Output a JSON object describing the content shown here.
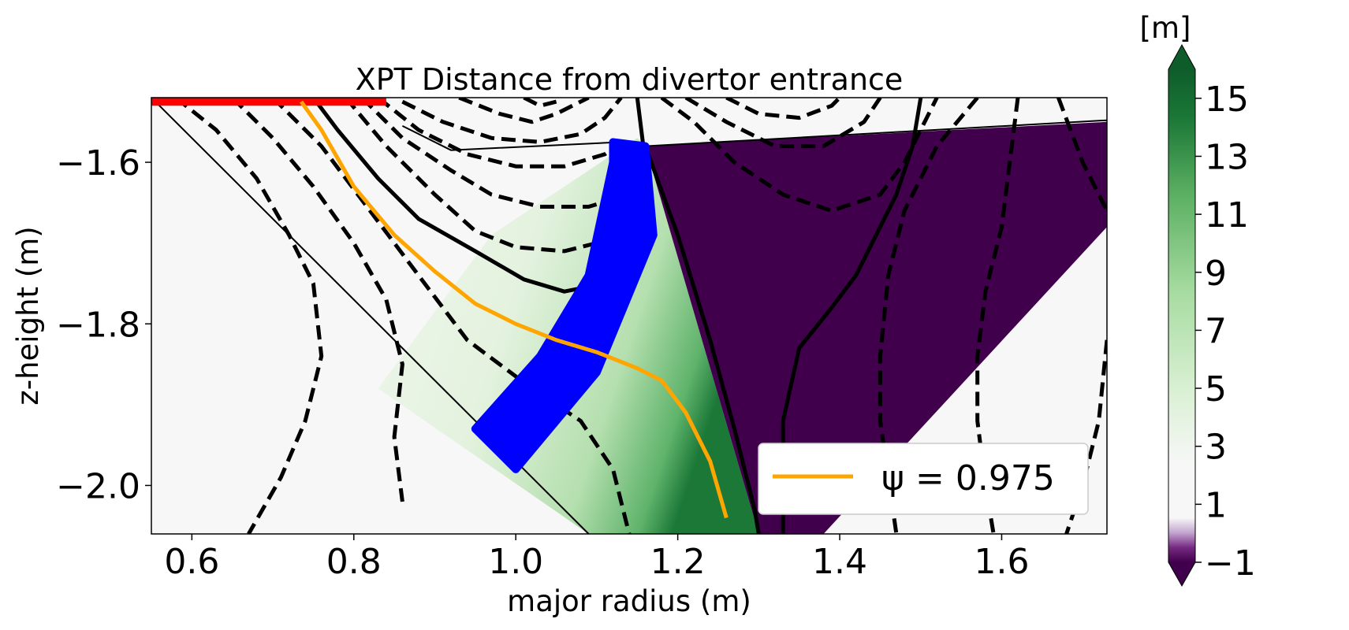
{
  "chart_data": {
    "type": "heatmap",
    "title": "XPT Distance from divertor entrance",
    "xlabel": "major radius (m)",
    "ylabel": "z-height (m)",
    "xlim": [
      0.55,
      1.73
    ],
    "ylim": [
      -2.06,
      -1.52
    ],
    "x_ticks": [
      {
        "value": 0.6,
        "label": "0.6"
      },
      {
        "value": 0.8,
        "label": "0.8"
      },
      {
        "value": 1.0,
        "label": "1.0"
      },
      {
        "value": 1.2,
        "label": "1.2"
      },
      {
        "value": 1.4,
        "label": "1.4"
      },
      {
        "value": 1.6,
        "label": "1.6"
      }
    ],
    "y_ticks": [
      {
        "value": -1.6,
        "label": "−1.6"
      },
      {
        "value": -1.8,
        "label": "−1.8"
      },
      {
        "value": -2.0,
        "label": "−2.0"
      }
    ],
    "colorbar": {
      "label": "[m]",
      "cmap": "PRGn",
      "range": [
        -1,
        16
      ],
      "ticks": [
        {
          "value": 15,
          "label": "15"
        },
        {
          "value": 13,
          "label": "13"
        },
        {
          "value": 11,
          "label": "11"
        },
        {
          "value": 9,
          "label": "9"
        },
        {
          "value": 7,
          "label": "7"
        },
        {
          "value": 5,
          "label": "5"
        },
        {
          "value": 3,
          "label": "3"
        },
        {
          "value": 1,
          "label": "1"
        },
        {
          "value": -1,
          "label": "−1"
        }
      ],
      "extend": "both"
    },
    "legend": {
      "placement": "lower-right",
      "entries": [
        {
          "label": "ψ = 0.975",
          "color": "#ffa500"
        }
      ]
    },
    "colors": {
      "negative_region": "#40004b",
      "background": "#f7f7f7",
      "highlight_band": "#0000ff",
      "top_strip": "#ff0000",
      "orange_line": "#ffa500",
      "contours": "#000000"
    },
    "regions": {
      "purple_region": [
        [
          1.16,
          -1.58
        ],
        [
          1.73,
          -1.55
        ],
        [
          1.73,
          -1.68
        ],
        [
          1.38,
          -2.06
        ],
        [
          1.3,
          -2.06
        ]
      ],
      "green_region": [
        [
          0.97,
          -1.69
        ],
        [
          1.15,
          -1.57
        ],
        [
          1.16,
          -1.58
        ],
        [
          1.3,
          -2.06
        ],
        [
          1.09,
          -2.06
        ],
        [
          0.83,
          -1.88
        ]
      ],
      "blue_band": [
        [
          1.12,
          -1.575
        ],
        [
          1.16,
          -1.58
        ],
        [
          1.17,
          -1.69
        ],
        [
          1.1,
          -1.86
        ],
        [
          1.0,
          -1.98
        ],
        [
          0.95,
          -1.93
        ],
        [
          1.03,
          -1.84
        ],
        [
          1.09,
          -1.74
        ],
        [
          1.12,
          -1.6
        ]
      ],
      "red_strip": [
        [
          0.55,
          -1.52
        ],
        [
          0.84,
          -1.52
        ],
        [
          0.84,
          -1.53
        ],
        [
          0.55,
          -1.53
        ]
      ]
    },
    "boundary_lines": [
      [
        [
          0.55,
          -1.52
        ],
        [
          1.09,
          -2.06
        ]
      ],
      [
        [
          0.86,
          -1.555
        ],
        [
          0.92,
          -1.585
        ],
        [
          1.13,
          -1.575
        ],
        [
          1.16,
          -1.58
        ],
        [
          1.73,
          -1.548
        ]
      ]
    ],
    "orange_line": [
      [
        0.735,
        -1.525
      ],
      [
        0.76,
        -1.56
      ],
      [
        0.8,
        -1.63
      ],
      [
        0.85,
        -1.69
      ],
      [
        0.9,
        -1.735
      ],
      [
        0.95,
        -1.775
      ],
      [
        1.0,
        -1.8
      ],
      [
        1.05,
        -1.82
      ],
      [
        1.1,
        -1.835
      ],
      [
        1.15,
        -1.855
      ],
      [
        1.18,
        -1.87
      ],
      [
        1.21,
        -1.91
      ],
      [
        1.24,
        -1.97
      ],
      [
        1.26,
        -2.04
      ]
    ],
    "solid_contours": [
      [
        [
          0.75,
          -1.52
        ],
        [
          0.78,
          -1.56
        ],
        [
          0.83,
          -1.62
        ],
        [
          0.88,
          -1.67
        ],
        [
          0.95,
          -1.71
        ],
        [
          1.01,
          -1.745
        ],
        [
          1.06,
          -1.76
        ],
        [
          1.11,
          -1.75
        ],
        [
          1.15,
          -1.725
        ],
        [
          1.16,
          -1.69
        ],
        [
          1.16,
          -1.6
        ],
        [
          1.15,
          -1.52
        ]
      ],
      [
        [
          1.16,
          -1.58
        ],
        [
          1.2,
          -1.69
        ],
        [
          1.24,
          -1.82
        ],
        [
          1.27,
          -1.93
        ],
        [
          1.295,
          -2.03
        ],
        [
          1.3,
          -2.06
        ]
      ],
      [
        [
          1.33,
          -2.06
        ],
        [
          1.33,
          -1.92
        ],
        [
          1.35,
          -1.83
        ],
        [
          1.39,
          -1.78
        ],
        [
          1.42,
          -1.74
        ],
        [
          1.44,
          -1.7
        ],
        [
          1.47,
          -1.64
        ],
        [
          1.49,
          -1.58
        ],
        [
          1.5,
          -1.52
        ]
      ]
    ],
    "dashed_contours": [
      [
        [
          0.58,
          -1.52
        ],
        [
          0.63,
          -1.56
        ],
        [
          0.68,
          -1.62
        ],
        [
          0.72,
          -1.69
        ],
        [
          0.75,
          -1.75
        ],
        [
          0.76,
          -1.84
        ],
        [
          0.74,
          -1.92
        ],
        [
          0.71,
          -1.99
        ],
        [
          0.67,
          -2.06
        ]
      ],
      [
        [
          0.65,
          -1.52
        ],
        [
          0.7,
          -1.57
        ],
        [
          0.75,
          -1.63
        ],
        [
          0.8,
          -1.7
        ],
        [
          0.84,
          -1.77
        ],
        [
          0.86,
          -1.85
        ],
        [
          0.85,
          -1.94
        ],
        [
          0.86,
          -2.02
        ]
      ],
      [
        [
          0.7,
          -1.52
        ],
        [
          0.76,
          -1.58
        ],
        [
          0.82,
          -1.66
        ],
        [
          0.88,
          -1.74
        ],
        [
          0.94,
          -1.82
        ],
        [
          1.02,
          -1.88
        ],
        [
          1.08,
          -1.92
        ],
        [
          1.12,
          -1.98
        ],
        [
          1.14,
          -2.06
        ]
      ],
      [
        [
          0.79,
          -1.52
        ],
        [
          0.84,
          -1.58
        ],
        [
          0.9,
          -1.64
        ],
        [
          0.95,
          -1.685
        ],
        [
          1.0,
          -1.705
        ],
        [
          1.06,
          -1.71
        ],
        [
          1.1,
          -1.7
        ],
        [
          1.13,
          -1.68
        ]
      ],
      [
        [
          0.81,
          -1.52
        ],
        [
          0.86,
          -1.57
        ],
        [
          0.92,
          -1.61
        ],
        [
          0.97,
          -1.64
        ],
        [
          1.03,
          -1.655
        ],
        [
          1.09,
          -1.655
        ],
        [
          1.14,
          -1.64
        ]
      ],
      [
        [
          0.83,
          -1.52
        ],
        [
          0.88,
          -1.56
        ],
        [
          0.94,
          -1.59
        ],
        [
          1.0,
          -1.605
        ],
        [
          1.06,
          -1.605
        ],
        [
          1.11,
          -1.59
        ],
        [
          1.14,
          -1.57
        ]
      ],
      [
        [
          0.86,
          -1.525
        ],
        [
          0.91,
          -1.55
        ],
        [
          0.97,
          -1.57
        ],
        [
          1.03,
          -1.575
        ],
        [
          1.08,
          -1.565
        ],
        [
          1.11,
          -1.545
        ],
        [
          1.13,
          -1.52
        ]
      ],
      [
        [
          0.93,
          -1.52
        ],
        [
          0.98,
          -1.54
        ],
        [
          1.02,
          -1.55
        ],
        [
          1.05,
          -1.54
        ],
        [
          1.09,
          -1.52
        ]
      ],
      [
        [
          1.01,
          -1.52
        ],
        [
          1.03,
          -1.53
        ],
        [
          1.05,
          -1.525
        ]
      ],
      [
        [
          1.18,
          -1.52
        ],
        [
          1.22,
          -1.55
        ],
        [
          1.27,
          -1.6
        ],
        [
          1.33,
          -1.64
        ],
        [
          1.39,
          -1.66
        ],
        [
          1.45,
          -1.64
        ],
        [
          1.48,
          -1.6
        ],
        [
          1.51,
          -1.54
        ],
        [
          1.52,
          -1.52
        ]
      ],
      [
        [
          1.21,
          -1.52
        ],
        [
          1.26,
          -1.55
        ],
        [
          1.32,
          -1.58
        ],
        [
          1.38,
          -1.58
        ],
        [
          1.43,
          -1.55
        ],
        [
          1.45,
          -1.52
        ]
      ],
      [
        [
          1.26,
          -1.52
        ],
        [
          1.3,
          -1.54
        ],
        [
          1.35,
          -1.545
        ],
        [
          1.39,
          -1.53
        ],
        [
          1.4,
          -1.52
        ]
      ],
      [
        [
          1.57,
          -1.52
        ],
        [
          1.52,
          -1.58
        ],
        [
          1.48,
          -1.66
        ],
        [
          1.46,
          -1.74
        ],
        [
          1.45,
          -1.84
        ],
        [
          1.45,
          -1.92
        ],
        [
          1.46,
          -1.99
        ],
        [
          1.47,
          -2.06
        ]
      ],
      [
        [
          1.62,
          -1.52
        ],
        [
          1.61,
          -1.6
        ],
        [
          1.6,
          -1.68
        ],
        [
          1.58,
          -1.76
        ],
        [
          1.57,
          -1.84
        ],
        [
          1.57,
          -1.92
        ],
        [
          1.58,
          -2.0
        ],
        [
          1.59,
          -2.06
        ]
      ],
      [
        [
          1.67,
          -1.52
        ],
        [
          1.7,
          -1.6
        ],
        [
          1.73,
          -1.66
        ]
      ],
      [
        [
          1.73,
          -1.82
        ],
        [
          1.72,
          -1.92
        ],
        [
          1.7,
          -2.0
        ],
        [
          1.68,
          -2.06
        ]
      ]
    ]
  }
}
